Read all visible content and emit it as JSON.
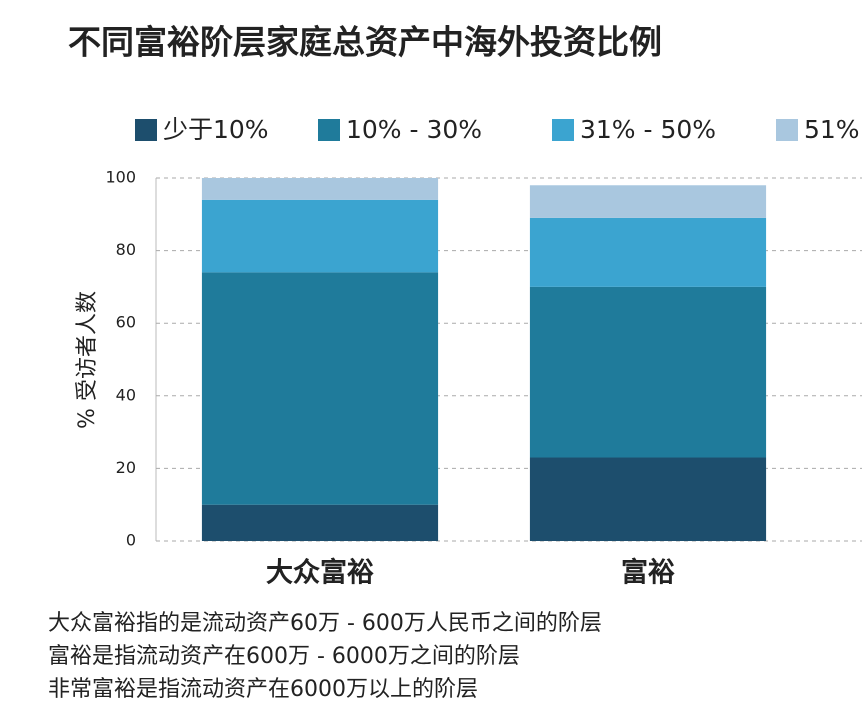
{
  "chart_data": {
    "type": "stacked_bar",
    "title": "不同富裕阶层家庭总资产中海外投资比例",
    "y_label": "% 受访者人数",
    "categories": [
      "大众富裕",
      "富裕"
    ],
    "series": [
      {
        "name": "少于10%",
        "color": "#1d4e6d",
        "values": [
          10,
          23
        ]
      },
      {
        "name": "10% - 30%",
        "color": "#1f7b9b",
        "values": [
          64,
          47
        ]
      },
      {
        "name": "31% - 50%",
        "color": "#3ba4d0",
        "values": [
          20,
          19
        ]
      },
      {
        "name": "51%",
        "color": "#a9c7df",
        "values": [
          6,
          9
        ]
      }
    ],
    "ylim": [
      0,
      100
    ],
    "yticks": [
      0,
      20,
      40,
      60,
      80,
      100
    ],
    "grid": true,
    "notes": [
      "大众富裕指的是流动资产60万 - 600万人民币之间的阶层",
      "富裕是指流动资产在600万 - 6000万之间的阶层",
      "非常富裕是指流动资产在6000万以上的阶层"
    ]
  }
}
